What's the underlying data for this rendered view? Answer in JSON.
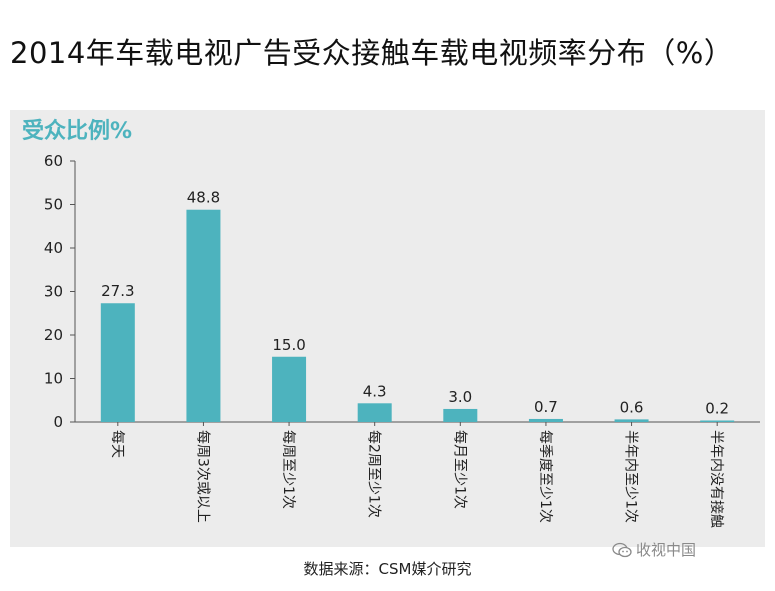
{
  "page": {
    "title": "2014年车载电视广告受众接触车载电视频率分布（%）",
    "source": "数据来源：CSM媒介研究",
    "watermark": "收视中国"
  },
  "colors": {
    "bar": "#4db3be",
    "axis": "#555555",
    "panel": "#ececec",
    "ylabel": "#4db3be"
  },
  "chart_data": {
    "type": "bar",
    "ylabel": "受众比例%",
    "xlabel": "",
    "categories": [
      "每天",
      "每周3次或以上",
      "每周至少1次",
      "每2周至少1次",
      "每月至少1次",
      "每季度至少1次",
      "半年内至少1次",
      "半年内没有接触"
    ],
    "values": [
      27.3,
      48.8,
      15.0,
      4.3,
      3.0,
      0.7,
      0.6,
      0.2
    ],
    "value_labels": [
      "27.3",
      "48.8",
      "15.0",
      "4.3",
      "3.0",
      "0.7",
      "0.6",
      "0.2"
    ],
    "ylim": [
      0,
      60
    ],
    "yticks": [
      0,
      10,
      20,
      30,
      40,
      50,
      60
    ],
    "grid": false,
    "legend": "none"
  }
}
